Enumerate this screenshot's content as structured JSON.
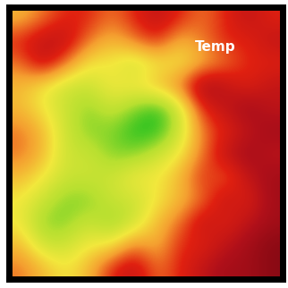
{
  "chart_data": {
    "type": "heatmap",
    "title": "Temp",
    "tick_labels": false,
    "cells": [
      [
        5,
        6,
        7,
        7,
        6,
        7,
        8,
        7,
        6,
        7,
        8,
        7
      ],
      [
        7,
        8,
        8,
        6,
        5,
        6,
        7,
        5,
        6,
        7,
        7,
        8
      ],
      [
        6,
        8,
        6,
        4,
        4,
        3,
        4,
        4,
        5,
        6,
        7,
        7
      ],
      [
        5,
        4,
        3,
        3,
        4,
        4,
        5,
        6,
        9,
        8,
        7,
        8
      ],
      [
        5,
        4,
        3,
        2,
        3,
        2,
        1,
        3,
        7,
        8,
        9,
        8
      ],
      [
        6,
        5,
        3,
        2,
        2,
        1,
        1,
        3,
        6,
        7,
        8,
        9
      ],
      [
        6,
        5,
        3,
        3,
        2,
        2,
        3,
        4,
        6,
        8,
        9,
        8
      ],
      [
        5,
        4,
        3,
        3,
        3,
        4,
        4,
        5,
        7,
        6,
        8,
        9
      ],
      [
        4,
        3,
        2,
        2,
        3,
        3,
        4,
        5,
        6,
        8,
        7,
        9
      ],
      [
        4,
        2,
        2,
        3,
        2,
        3,
        5,
        6,
        8,
        7,
        8,
        9
      ],
      [
        5,
        3,
        3,
        4,
        4,
        6,
        5,
        7,
        7,
        8,
        9,
        10
      ],
      [
        6,
        5,
        4,
        5,
        7,
        8,
        6,
        7,
        8,
        9,
        9,
        10
      ]
    ]
  }
}
